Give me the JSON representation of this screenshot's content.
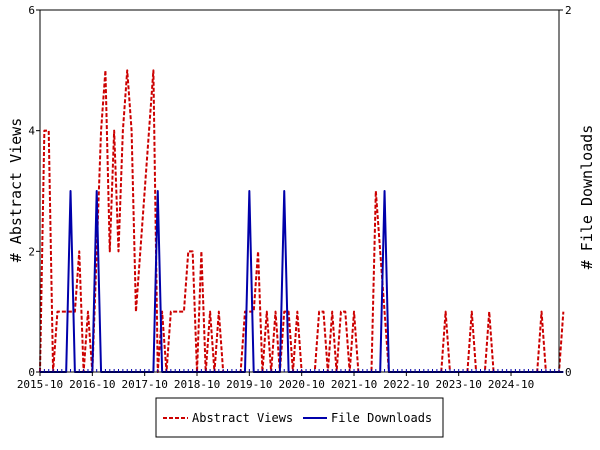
{
  "chart_data": {
    "type": "line",
    "x_tick_labels": [
      "2015-10",
      "2016-10",
      "2017-10",
      "2018-10",
      "2019-10",
      "2020-10",
      "2021-10",
      "2022-10",
      "2023-10",
      "2024-10"
    ],
    "y_left": {
      "label": "# Abstract Views",
      "ticks": [
        "0",
        "2",
        "4",
        "6"
      ],
      "range": [
        0,
        6
      ]
    },
    "y_right": {
      "label": "# File Downloads",
      "ticks": [
        "0",
        "2"
      ],
      "range": [
        0,
        2
      ]
    },
    "x_range": [
      0,
      119
    ],
    "series": [
      {
        "name": "Abstract Views",
        "axis": "left",
        "color": "#cc0000",
        "style": "dashed",
        "values": [
          0,
          4,
          4,
          0,
          1,
          1,
          1,
          1,
          1,
          2,
          0,
          1,
          0,
          2,
          4,
          5,
          2,
          4,
          2,
          4,
          5,
          4,
          1,
          2,
          3,
          4,
          5,
          0,
          1,
          0,
          1,
          1,
          1,
          1,
          2,
          2,
          0,
          2,
          0,
          1,
          0,
          1,
          0,
          0,
          0,
          0,
          0,
          1,
          1,
          1,
          2,
          0,
          1,
          0,
          1,
          0,
          1,
          1,
          0,
          1,
          0,
          0,
          0,
          0,
          1,
          1,
          0,
          1,
          0,
          1,
          1,
          0,
          1,
          0,
          0,
          0,
          0,
          3,
          2,
          1,
          0,
          0,
          0,
          0,
          0,
          0,
          0,
          0,
          0,
          0,
          0,
          0,
          0,
          1,
          0,
          0,
          0,
          0,
          0,
          1,
          0,
          0,
          0,
          1,
          0,
          0,
          0,
          0,
          0,
          0,
          0,
          0,
          0,
          0,
          0,
          1,
          0,
          0,
          0,
          0,
          1
        ]
      },
      {
        "name": "File Downloads",
        "axis": "right",
        "color": "#0000aa",
        "style": "solid",
        "values": [
          0,
          0,
          0,
          0,
          0,
          0,
          0,
          1,
          0,
          0,
          0,
          0,
          0,
          1,
          0,
          0,
          0,
          0,
          0,
          0,
          0,
          0,
          0,
          0,
          0,
          0,
          0,
          1,
          0,
          0,
          0,
          0,
          0,
          0,
          0,
          0,
          0,
          0,
          0,
          0,
          0,
          0,
          0,
          0,
          0,
          0,
          0,
          0,
          1,
          0,
          0,
          0,
          0,
          0,
          0,
          0,
          1,
          0,
          0,
          0,
          0,
          0,
          0,
          0,
          0,
          0,
          0,
          0,
          0,
          0,
          0,
          0,
          0,
          0,
          0,
          0,
          0,
          0,
          0,
          1,
          0,
          0,
          0,
          0,
          0,
          0,
          0,
          0,
          0,
          0,
          0,
          0,
          0,
          0,
          0,
          0,
          0,
          0,
          0,
          0,
          0,
          0,
          0,
          0,
          0,
          0,
          0,
          0,
          0,
          0,
          0,
          0,
          0,
          0,
          0,
          0,
          0,
          0,
          0,
          0,
          0
        ]
      }
    ],
    "legend": {
      "placement": "bottom-center"
    }
  }
}
